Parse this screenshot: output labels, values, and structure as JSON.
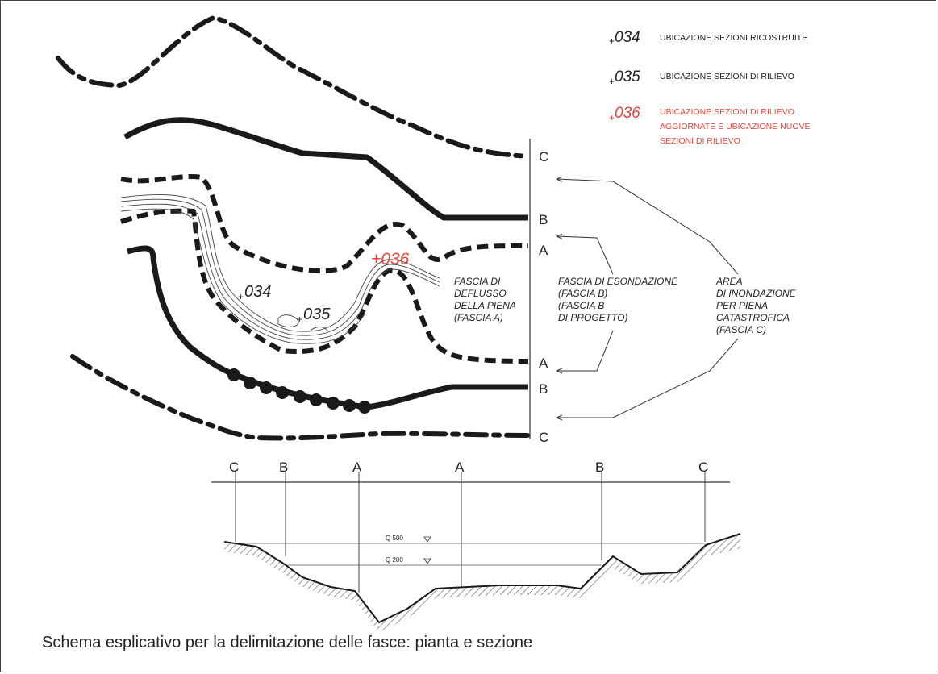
{
  "legend": [
    {
      "code": "034",
      "prefix": "+",
      "text": "UBICAZIONE SEZIONI RICOSTRUITE",
      "color": "#222222"
    },
    {
      "code": "035",
      "prefix": "+",
      "text": "UBICAZIONE SEZIONI DI RILIEVO",
      "color": "#222222"
    },
    {
      "code": "036",
      "prefix": "+",
      "text_lines": [
        "UBICAZIONE SEZIONI DI RILIEVO",
        "AGGIORNATE E UBICAZIONE NUOVE",
        "SEZIONI DI RILIEVO"
      ],
      "color": "#e8463c"
    }
  ],
  "boundary_letters": {
    "c_top": "C",
    "b_top": "B",
    "a_top": "A",
    "a_bottom": "A",
    "b_bottom": "B",
    "c_bottom": "C"
  },
  "section_markers": {
    "s034": "034",
    "s035": "035",
    "s036": "+036",
    "plus": "+"
  },
  "zone_labels": {
    "fascia_a": [
      "FASCIA DI",
      "DEFLUSSO",
      "DELLA PIENA",
      "(FASCIA A)"
    ],
    "fascia_b": [
      "FASCIA DI ESONDAZIONE",
      "(FASCIA B)",
      "(FASCIA B",
      "DI PROGETTO)"
    ],
    "fascia_c": [
      "AREA",
      "DI INONDAZIONE",
      "PER PIENA",
      "CATASTROFICA",
      "(FASCIA C)"
    ]
  },
  "cross_section": {
    "letters": [
      "C",
      "B",
      "A",
      "A",
      "B",
      "C"
    ],
    "levels": [
      "Q 500",
      "Q 200"
    ]
  },
  "caption": "Schema esplicativo per la delimitazione delle fasce: pianta e sezione",
  "colors": {
    "line": "#1a1a1a",
    "accent_red": "#e8463c"
  }
}
